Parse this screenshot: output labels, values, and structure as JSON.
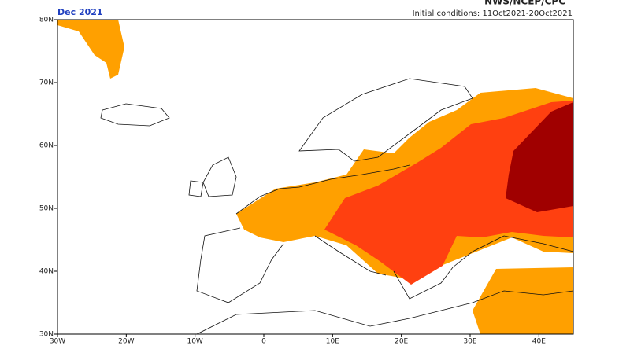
{
  "header": {
    "source": "NWS/NCEP/CPC",
    "title": "Dec 2021",
    "initial_conditions": "Initial conditions: 11Oct2021-20Oct2021"
  },
  "map": {
    "x_labels": [
      "30W",
      "20W",
      "10W",
      "0",
      "10E",
      "20E",
      "30E",
      "40E"
    ],
    "y_labels": [
      "80N",
      "70N",
      "60N",
      "50N",
      "40N",
      "30N"
    ]
  }
}
